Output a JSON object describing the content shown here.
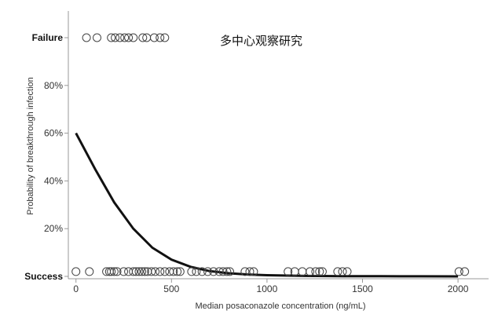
{
  "chart_data": {
    "type": "scatter",
    "xlabel": "Median posaconazole concentration (ng/mL)",
    "ylabel": "Probability of breakthrough infection",
    "annotation": "多中心观察研究",
    "xlim": [
      -40,
      2160
    ],
    "ylim": [
      0,
      100
    ],
    "x_ticks": [
      0,
      500,
      1000,
      1500,
      2000
    ],
    "y_ticks": [
      {
        "value": 0,
        "label": "Success",
        "strong": true
      },
      {
        "value": 20,
        "label": "20%",
        "strong": false
      },
      {
        "value": 40,
        "label": "40%",
        "strong": false
      },
      {
        "value": 60,
        "label": "60%",
        "strong": false
      },
      {
        "value": 80,
        "label": "80%",
        "strong": false
      },
      {
        "value": 100,
        "label": "Failure",
        "strong": true
      }
    ],
    "series": [
      {
        "role": "failure",
        "y": 100,
        "x": [
          55,
          110,
          185,
          205,
          230,
          255,
          275,
          300,
          350,
          370,
          410,
          440,
          465
        ]
      },
      {
        "role": "success",
        "y": 2,
        "x": [
          0,
          70,
          160,
          175,
          185,
          200,
          215,
          250,
          275,
          300,
          315,
          330,
          345,
          360,
          375,
          395,
          415,
          440,
          465,
          490,
          510,
          530,
          545,
          605,
          630,
          660,
          690,
          720,
          750,
          770,
          790,
          805,
          885,
          910,
          930,
          1110,
          1145,
          1185,
          1225,
          1255,
          1275,
          1290,
          1370,
          1395,
          1420,
          2005,
          2035
        ]
      }
    ],
    "fit_curve": {
      "type": "logistic",
      "x": [
        0,
        100,
        200,
        300,
        400,
        500,
        600,
        700,
        800,
        900,
        1000,
        1200,
        1400,
        1600,
        1800,
        2000
      ],
      "y": [
        60,
        45,
        31,
        20,
        12,
        7,
        4,
        2.2,
        1.3,
        0.8,
        0.5,
        0.2,
        0.1,
        0.05,
        0.02,
        0.01
      ]
    }
  }
}
